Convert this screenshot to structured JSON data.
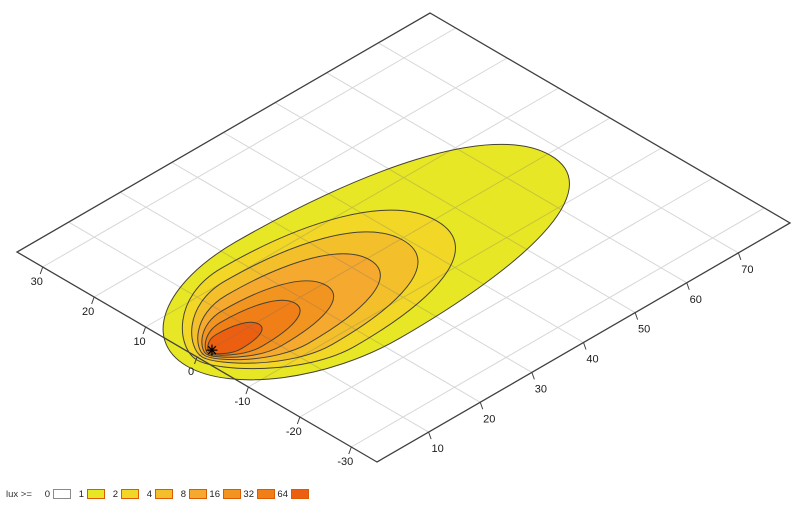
{
  "chart_data": {
    "type": "contour",
    "title": "",
    "description": "Isolux contour diagram of a luminaire on a ground plane, shown in 3D perspective projection",
    "x_axis": {
      "label": "",
      "range": [
        0,
        80
      ],
      "tick_values": [
        10,
        20,
        30,
        40,
        50,
        60,
        70
      ]
    },
    "y_axis": {
      "label": "",
      "range": [
        -35,
        35
      ],
      "tick_values": [
        30,
        20,
        10,
        0,
        -10,
        -20,
        -30
      ]
    },
    "grid": {
      "shown": true,
      "step": 10
    },
    "source_marker": {
      "x": 2.6,
      "y": -0.3,
      "symbol": "asterisk",
      "color": "#000000"
    },
    "contours": [
      {
        "lux": 1,
        "fill": "#e8e725",
        "near_x": -2.5,
        "reach_x": 68.0,
        "half_width": 16.0,
        "widest_frac": 0.36,
        "pinch": 0.55
      },
      {
        "lux": 2,
        "fill": "#f2d727",
        "near_x": -0.5,
        "reach_x": 46.0,
        "half_width": 13.0,
        "widest_frac": 0.38,
        "pinch": 0.3
      },
      {
        "lux": 4,
        "fill": "#f3c02b",
        "near_x": 0.5,
        "reach_x": 39.5,
        "half_width": 10.5,
        "widest_frac": 0.38,
        "pinch": 0.27
      },
      {
        "lux": 8,
        "fill": "#f5a92f",
        "near_x": 1.0,
        "reach_x": 33.0,
        "half_width": 8.0,
        "widest_frac": 0.38,
        "pinch": 0.26
      },
      {
        "lux": 16,
        "fill": "#f29420",
        "near_x": 1.4,
        "reach_x": 24.5,
        "half_width": 5.8,
        "widest_frac": 0.38,
        "pinch": 0.25
      },
      {
        "lux": 32,
        "fill": "#ef7f16",
        "near_x": 1.7,
        "reach_x": 18.5,
        "half_width": 4.0,
        "widest_frac": 0.38,
        "pinch": 0.25
      },
      {
        "lux": 64,
        "fill": "#ec5f10",
        "near_x": 2.0,
        "reach_x": 11.5,
        "half_width": 2.4,
        "widest_frac": 0.38,
        "pinch": 0.25
      }
    ],
    "legend": {
      "label": "lux >=",
      "items": [
        {
          "value": "0",
          "color": "#ffffff",
          "border": "#8a8a8a"
        },
        {
          "value": "1",
          "color": "#e8e725",
          "border": "#dd5a00"
        },
        {
          "value": "2",
          "color": "#f2d727",
          "border": "#dd5a00"
        },
        {
          "value": "4",
          "color": "#f3c02b",
          "border": "#dd5a00"
        },
        {
          "value": "8",
          "color": "#f5a92f",
          "border": "#dd5a00"
        },
        {
          "value": "16",
          "color": "#f29420",
          "border": "#dd5a00"
        },
        {
          "value": "32",
          "color": "#ef7f16",
          "border": "#dd5a00"
        },
        {
          "value": "64",
          "color": "#ec5f10",
          "border": "#dd5a00"
        }
      ]
    },
    "style": {
      "contour_line_color": "#454233",
      "grid_color": "rgba(110,110,110,0.28)",
      "border_color": "#404040",
      "label_color": "#1a1a1a",
      "background": "#ffffff"
    }
  }
}
